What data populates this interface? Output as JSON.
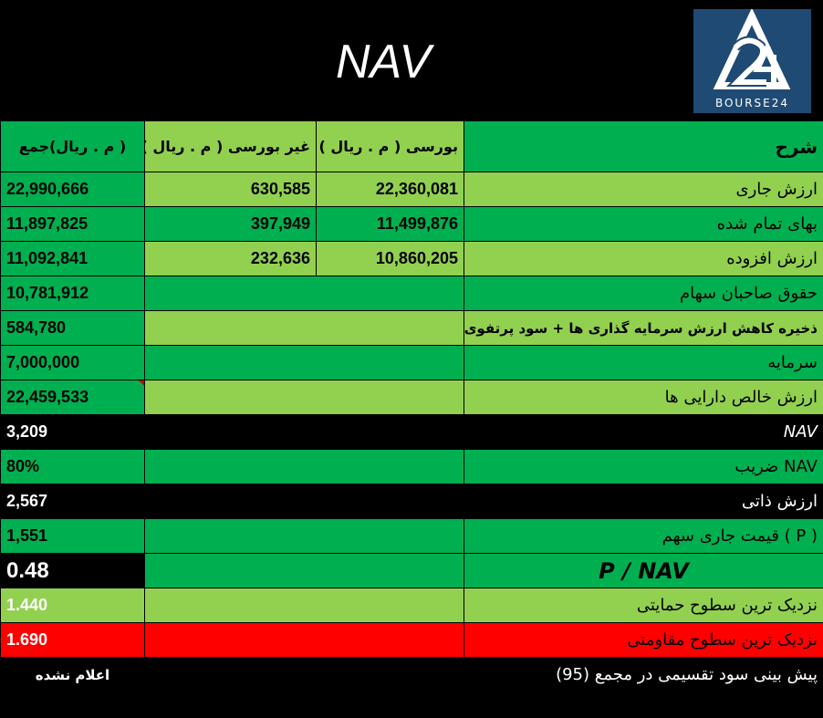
{
  "title": "NAV",
  "logo": {
    "text": "BOURSE24"
  },
  "headers": {
    "sum": "( م . ریال)جمع",
    "non_bourse": "غیر بورسی ( م . ریال )",
    "bourse": "بورسی ( م . ریال )",
    "description": "شرح"
  },
  "rows": [
    {
      "sum": "22,990,666",
      "non_bourse": "630,585",
      "bourse": "22,360,081",
      "description": "ارزش جاری"
    },
    {
      "sum": "11,897,825",
      "non_bourse": "397,949",
      "bourse": "11,499,876",
      "description": "بهای تمام شده"
    },
    {
      "sum": "11,092,841",
      "non_bourse": "232,636",
      "bourse": "10,860,205",
      "description": "ارزش افزوده"
    },
    {
      "sum": "10,781,912",
      "description": "حقوق صاحبان سهام"
    },
    {
      "sum": "584,780",
      "description": "ذخیره کاهش ارزش سرمایه گذاری ها + سود پرتفوی"
    },
    {
      "sum": "7,000,000",
      "description": "سرمایه"
    },
    {
      "sum": "22,459,533",
      "description": "ارزش خالص دارایی ها"
    },
    {
      "sum": "3,209",
      "description": "NAV"
    },
    {
      "sum": "80%",
      "description": "NAV ضریب"
    },
    {
      "sum": "2,567",
      "description": "ارزش ذاتی"
    },
    {
      "sum": "1,551",
      "description": "( P ) قیمت جاری سهم"
    },
    {
      "sum": "0.48",
      "description": "P / NAV"
    },
    {
      "sum": "1.440",
      "description": "نزدیک ترین سطوح حمایتی"
    },
    {
      "sum": "1.690",
      "description": "نزدیک ترین سطوح مقاومتی"
    },
    {
      "sum": "اعلام نشده",
      "description": "پیش بینی سود تقسیمی در مجمع (95)"
    }
  ],
  "colors": {
    "green": "#00b050",
    "light_green": "#92d050",
    "red": "#ff0000",
    "black": "#000000",
    "logo_blue": "#1f4a73"
  }
}
